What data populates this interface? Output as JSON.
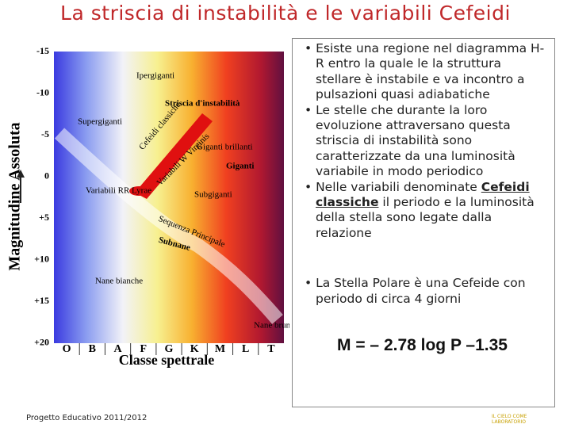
{
  "header": {
    "title": "La striscia di instabilità e le variabili Cefeidi"
  },
  "diagram": {
    "y_axis_label": "Magnitudine Assoluta",
    "y_ticks": [
      "-15",
      "-10",
      "-5",
      "0",
      "+5",
      "+10",
      "+15",
      "+20"
    ],
    "x_axis_label": "Classe spettrale",
    "x_ticks": [
      "O",
      "B",
      "A",
      "F",
      "G",
      "K",
      "M",
      "L",
      "T"
    ],
    "regions": [
      "Ipergiganti",
      "Striscia d'instabilità",
      "Supergiganti",
      "Cefeidi classiche",
      "Giganti brillanti",
      "Giganti",
      "Variabili W Virginis",
      "Variabili RR Lyrae",
      "Subgiganti",
      "Sequenza Principale",
      "Subnane",
      "Nane bianche",
      "Nane brune"
    ]
  },
  "bullets": [
    {
      "text": "Esiste una regione nel diagramma H-R entro la quale le la struttura stellare è instabile e va incontro a pulsazioni quasi adiabatiche"
    },
    {
      "text": "Le stelle che durante la loro evoluzione attraversano questa striscia di instabilità sono caratterizzate da una luminosità variabile in modo periodico"
    },
    {
      "before": "Nelle variabili denominate ",
      "highlight": "Cefeidi classiche",
      "after": " il periodo e la luminosità della stella sono legate dalla relazione"
    },
    {
      "text": "La Stella Polare è una Cefeide con periodo di circa 4 giorni"
    }
  ],
  "formula": "M = – 2.78 log P –1.35",
  "footer": {
    "text": "Progetto Educativo 2011/2012",
    "logo": "IL CIELO COME LABORATORIO"
  }
}
